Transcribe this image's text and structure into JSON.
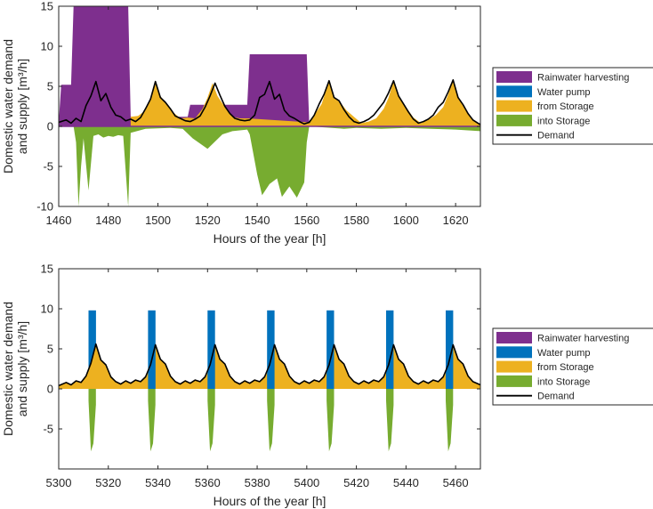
{
  "legend": {
    "placement": "right",
    "entries": [
      {
        "key": "rainwater",
        "label": "Rainwater harvesting",
        "color": "#7e2f8e"
      },
      {
        "key": "pump",
        "label": "Water pump",
        "color": "#0072bd"
      },
      {
        "key": "from",
        "label": "from Storage",
        "color": "#edb120"
      },
      {
        "key": "into",
        "label": "into Storage",
        "color": "#77ac30"
      },
      {
        "key": "demand",
        "label": "Demand",
        "color": "#000000"
      }
    ]
  },
  "chart_data": [
    {
      "type": "area",
      "xlabel": "Hours of the year [h]",
      "ylabel": [
        "Domestic water demand",
        "and supply [m³/h]"
      ],
      "xlim": [
        1460,
        1630
      ],
      "ylim": [
        -10,
        15
      ],
      "xticks": [
        1460,
        1480,
        1500,
        1520,
        1540,
        1560,
        1580,
        1600,
        1620
      ],
      "yticks": [
        -10,
        -5,
        0,
        5,
        10,
        15
      ],
      "grid": false,
      "series": [
        {
          "name": "Rainwater harvesting",
          "key": "rainwater",
          "x": [
            1460,
            1461,
            1463,
            1465,
            1466,
            1488,
            1489,
            1512,
            1513,
            1536,
            1537,
            1560,
            1561,
            1630
          ],
          "values": [
            0.5,
            5.2,
            5.2,
            5.2,
            15,
            15,
            1.2,
            1.2,
            2.7,
            2.7,
            9.0,
            9.0,
            0.4,
            0.4
          ]
        },
        {
          "name": "from Storage",
          "key": "from",
          "x": [
            1489,
            1492,
            1495,
            1497,
            1499,
            1501,
            1503,
            1506,
            1509,
            1512,
            1515,
            1518,
            1520,
            1522,
            1524,
            1527,
            1530,
            1533,
            1536,
            1561,
            1563,
            1566,
            1569,
            1571,
            1573,
            1576,
            1579,
            1582,
            1585,
            1588,
            1591,
            1593,
            1595,
            1597,
            1600,
            1603,
            1606,
            1609,
            1612,
            1615,
            1617,
            1619,
            1621,
            1624,
            1627,
            1630
          ],
          "values": [
            1.2,
            1.3,
            2.0,
            3.4,
            5.6,
            3.8,
            2.9,
            1.8,
            1.0,
            1.1,
            1.0,
            2.2,
            3.6,
            5.4,
            3.8,
            2.4,
            1.2,
            1.0,
            1.0,
            0.5,
            1.4,
            2.8,
            5.7,
            3.6,
            3.2,
            2.0,
            1.2,
            0.4,
            0.6,
            1.0,
            2.2,
            3.6,
            5.7,
            3.8,
            2.4,
            1.1,
            0.4,
            0.8,
            1.4,
            2.4,
            4.0,
            5.8,
            3.6,
            2.0,
            0.8,
            0.2
          ]
        },
        {
          "name": "into Storage",
          "key": "into",
          "x": [
            1460,
            1466,
            1467,
            1468,
            1469,
            1470,
            1472,
            1474,
            1476,
            1478,
            1480,
            1482,
            1484,
            1486,
            1488,
            1489,
            1495,
            1505,
            1510,
            1514,
            1520,
            1526,
            1530,
            1536,
            1537,
            1540,
            1542,
            1545,
            1548,
            1550,
            1553,
            1556,
            1559,
            1560,
            1561,
            1575,
            1580,
            1590,
            1600,
            1610,
            1620,
            1630
          ],
          "values": [
            0,
            0,
            -2,
            -10,
            -5,
            -1.5,
            -8,
            -1.2,
            -1.0,
            -1.4,
            -1.2,
            -1.3,
            -1.1,
            -1.2,
            -10,
            -0.8,
            -0.3,
            -0.2,
            -0.3,
            -1.5,
            -2.8,
            -1.0,
            -0.6,
            -0.4,
            -1.0,
            -6.0,
            -8.6,
            -7.2,
            -6.5,
            -8.8,
            -7.5,
            -8.9,
            -7.0,
            -2.0,
            0,
            -0.3,
            -0.2,
            -0.3,
            -0.2,
            -0.3,
            -0.4,
            -0.6
          ]
        },
        {
          "name": "Demand",
          "key": "demand",
          "x": [
            1460,
            1463,
            1465,
            1467,
            1469,
            1471,
            1473,
            1475,
            1477,
            1479,
            1481,
            1483,
            1485,
            1487,
            1489,
            1491,
            1493,
            1495,
            1497,
            1499,
            1501,
            1503,
            1505,
            1507,
            1509,
            1511,
            1513,
            1515,
            1517,
            1519,
            1521,
            1523,
            1525,
            1527,
            1529,
            1531,
            1533,
            1535,
            1537,
            1539,
            1541,
            1543,
            1545,
            1547,
            1549,
            1551,
            1553,
            1555,
            1557,
            1559,
            1561,
            1563,
            1565,
            1567,
            1569,
            1571,
            1573,
            1575,
            1577,
            1579,
            1581,
            1583,
            1585,
            1587,
            1589,
            1591,
            1593,
            1595,
            1597,
            1599,
            1601,
            1603,
            1605,
            1607,
            1609,
            1611,
            1613,
            1615,
            1617,
            1619,
            1621,
            1623,
            1625,
            1627,
            1630
          ],
          "values": [
            0.5,
            0.8,
            0.4,
            1.0,
            0.6,
            2.6,
            3.8,
            5.6,
            3.2,
            4.1,
            2.4,
            1.4,
            1.2,
            0.7,
            0.9,
            0.6,
            1.1,
            2.2,
            3.4,
            5.6,
            3.6,
            3.0,
            2.2,
            1.3,
            1.0,
            0.7,
            0.6,
            0.9,
            1.3,
            2.4,
            3.8,
            5.4,
            3.9,
            2.5,
            1.6,
            1.0,
            0.8,
            0.7,
            0.8,
            1.4,
            3.6,
            4.0,
            5.6,
            3.4,
            4.0,
            2.0,
            1.3,
            1.0,
            0.6,
            0.3,
            0.5,
            1.4,
            2.8,
            4.0,
            5.7,
            3.6,
            3.2,
            2.1,
            1.2,
            0.6,
            0.4,
            0.6,
            0.9,
            1.4,
            2.2,
            3.0,
            4.2,
            5.7,
            3.8,
            2.8,
            1.8,
            0.9,
            0.4,
            0.6,
            0.9,
            1.4,
            2.4,
            3.0,
            4.3,
            5.8,
            3.6,
            2.7,
            1.6,
            0.8,
            0.2
          ]
        }
      ]
    },
    {
      "type": "area",
      "xlabel": "Hours of the year [h]",
      "ylabel": [
        "Domestic water demand",
        "and supply [m³/h]"
      ],
      "xlim": [
        5300,
        5470
      ],
      "ylim": [
        -10,
        15
      ],
      "xticks": [
        5300,
        5320,
        5340,
        5360,
        5380,
        5400,
        5420,
        5440,
        5460
      ],
      "yticks": [
        -5,
        0,
        5,
        10,
        15
      ],
      "grid": false,
      "daily_cycle": {
        "period_h": 24,
        "first_pump_start": 5312,
        "pump_duration_h": 3,
        "pump_rate": 9.8
      },
      "series": [
        {
          "name": "Water pump",
          "key": "pump",
          "x": [
            5312,
            5315,
            5336,
            5339,
            5360,
            5363,
            5384,
            5387,
            5408,
            5411,
            5432,
            5435,
            5456,
            5459
          ],
          "values": [
            9.8,
            9.8,
            9.8,
            9.8,
            9.8,
            9.8,
            9.8,
            9.8,
            9.8,
            9.8,
            9.8,
            9.8,
            9.8,
            9.8
          ]
        },
        {
          "name": "into Storage",
          "key": "into",
          "x": [
            5312,
            5313,
            5314,
            5315,
            5336,
            5337,
            5338,
            5339,
            5360,
            5361,
            5362,
            5363,
            5384,
            5385,
            5386,
            5387,
            5408,
            5409,
            5410,
            5411,
            5432,
            5433,
            5434,
            5435,
            5456,
            5457,
            5458,
            5459
          ],
          "values": [
            -1.5,
            -7.8,
            -6.8,
            -2.0,
            -1.5,
            -7.8,
            -6.8,
            -2.0,
            -1.5,
            -7.8,
            -6.8,
            -2.0,
            -1.5,
            -7.8,
            -6.8,
            -2.0,
            -1.5,
            -7.8,
            -6.8,
            -2.0,
            -1.5,
            -7.8,
            -6.8,
            -2.0,
            -1.5,
            -7.8,
            -6.8,
            -2.0
          ]
        },
        {
          "name": "Demand",
          "key": "demand",
          "x": [
            5300,
            5303,
            5305,
            5307,
            5309,
            5311,
            5313,
            5315,
            5317,
            5319,
            5321,
            5323,
            5325,
            5327,
            5329,
            5331,
            5333,
            5335,
            5337,
            5339,
            5341,
            5343,
            5345,
            5347,
            5349,
            5351,
            5353,
            5355,
            5357,
            5359,
            5361,
            5363,
            5365,
            5367,
            5369,
            5371,
            5373,
            5375,
            5377,
            5379,
            5381,
            5383,
            5385,
            5387,
            5389,
            5391,
            5393,
            5395,
            5397,
            5399,
            5401,
            5403,
            5405,
            5407,
            5409,
            5411,
            5413,
            5415,
            5417,
            5419,
            5421,
            5423,
            5425,
            5427,
            5429,
            5431,
            5433,
            5435,
            5437,
            5439,
            5441,
            5443,
            5445,
            5447,
            5449,
            5451,
            5453,
            5455,
            5457,
            5459,
            5461,
            5463,
            5465,
            5467,
            5470
          ],
          "values": [
            0.4,
            0.8,
            0.5,
            1.0,
            0.8,
            1.6,
            3.2,
            5.6,
            3.6,
            3.0,
            1.5,
            0.9,
            0.6,
            1.0,
            0.7,
            1.1,
            0.9,
            1.5,
            3.0,
            5.5,
            3.7,
            3.1,
            1.6,
            0.9,
            0.6,
            1.0,
            0.7,
            1.1,
            0.9,
            1.5,
            3.0,
            5.5,
            3.7,
            3.1,
            1.6,
            0.9,
            0.6,
            1.0,
            0.7,
            1.1,
            0.9,
            1.5,
            3.0,
            5.5,
            3.7,
            3.1,
            1.6,
            0.9,
            0.6,
            1.0,
            0.7,
            1.1,
            0.9,
            1.5,
            3.0,
            5.5,
            3.7,
            3.1,
            1.6,
            0.9,
            0.6,
            1.0,
            0.7,
            1.1,
            0.9,
            1.5,
            3.0,
            5.5,
            3.7,
            3.1,
            1.6,
            0.9,
            0.6,
            1.0,
            0.7,
            1.1,
            0.9,
            1.5,
            3.0,
            5.5,
            3.7,
            3.1,
            1.6,
            0.9,
            0.5
          ]
        }
      ]
    }
  ]
}
